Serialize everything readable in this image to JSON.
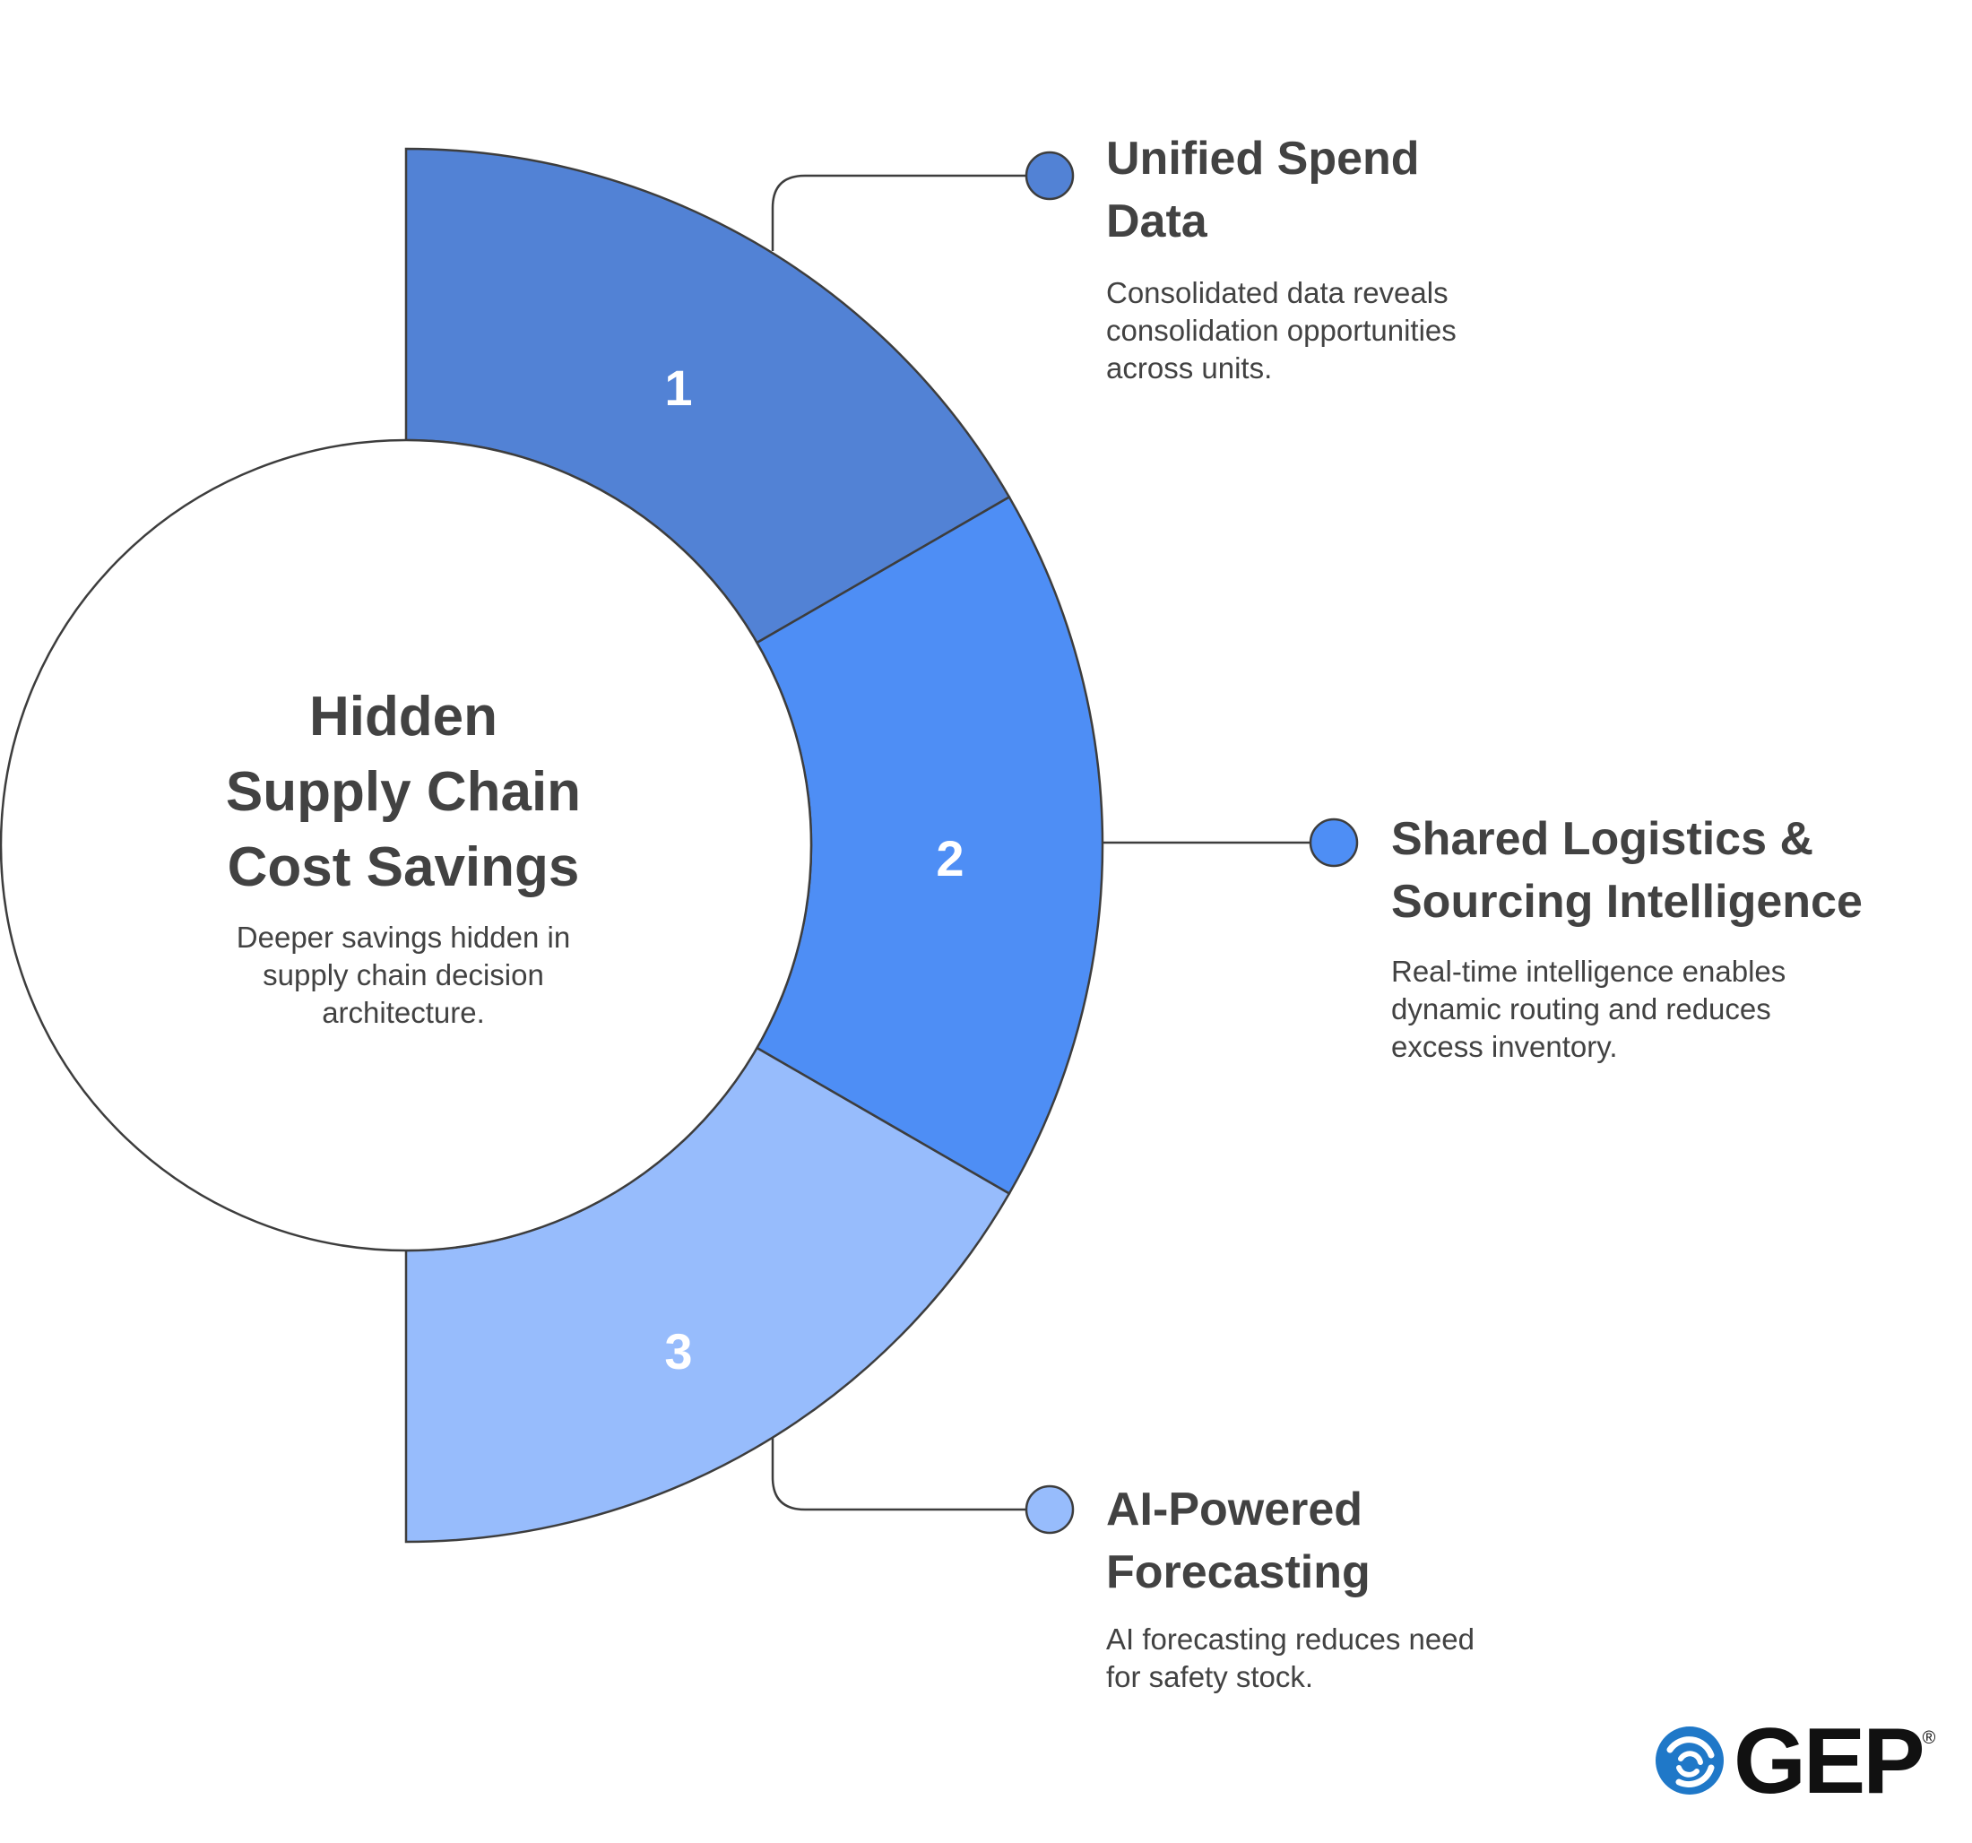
{
  "center": {
    "title_lines": [
      "Hidden",
      "Supply Chain",
      "Cost Savings"
    ],
    "subtitle_lines": [
      "Deeper savings hidden in",
      "supply chain decision",
      "architecture."
    ]
  },
  "segments": [
    {
      "number": "1",
      "color": "#5282d5",
      "title_lines": [
        "Unified Spend",
        "Data"
      ],
      "desc_lines": [
        "Consolidated data reveals",
        "consolidation opportunities",
        "across units."
      ]
    },
    {
      "number": "2",
      "color": "#4e8ef5",
      "title_lines": [
        "Shared Logistics &",
        "Sourcing Intelligence"
      ],
      "desc_lines": [
        "Real-time intelligence enables",
        "dynamic routing and reduces",
        "excess inventory."
      ]
    },
    {
      "number": "3",
      "color": "#97bcfc",
      "title_lines": [
        "AI-Powered",
        "Forecasting"
      ],
      "desc_lines": [
        "AI forecasting reduces need",
        "for safety stock."
      ]
    }
  ],
  "colors": {
    "text": "#424242",
    "outline": "#3d3d3d",
    "logo_blue": "#1f78c8",
    "logo_dark": "#111111"
  },
  "logo": {
    "text": "GEP",
    "mark": "®",
    "icon": "swirl-icon"
  }
}
